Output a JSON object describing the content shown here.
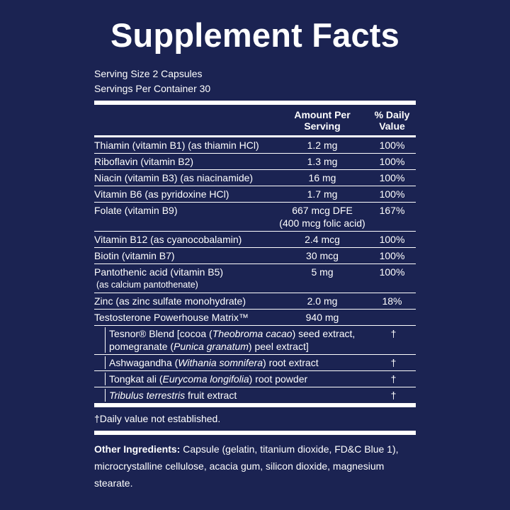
{
  "title": "Supplement Facts",
  "serving_size": "Serving Size 2 Capsules",
  "servings_per_container": "Servings Per Container 30",
  "header": {
    "amount": "Amount Per Serving",
    "daily_value": "% Daily Value"
  },
  "rows": [
    {
      "name": "Thiamin (vitamin B1) (as thiamin HCl)",
      "amount": "1.2 mg",
      "daily_value": "100%"
    },
    {
      "name": "Riboflavin (vitamin B2)",
      "amount": "1.3 mg",
      "daily_value": "100%"
    },
    {
      "name": "Niacin (vitamin B3) (as niacinamide)",
      "amount": "16 mg",
      "daily_value": "100%"
    },
    {
      "name": "Vitamin B6 (as pyridoxine HCl)",
      "amount": "1.7 mg",
      "daily_value": "100%"
    },
    {
      "name": "Folate (vitamin B9)",
      "amount": "667 mcg DFE",
      "amount_note": "(400 mcg folic acid)",
      "daily_value": "167%"
    },
    {
      "name": "Vitamin B12 (as cyanocobalamin)",
      "amount": "2.4 mcg",
      "daily_value": "100%"
    },
    {
      "name": "Biotin (vitamin B7)",
      "amount": "30 mcg",
      "daily_value": "100%"
    },
    {
      "name": "Pantothenic acid (vitamin B5)",
      "name_note": "(as calcium pantothenate)",
      "amount": "5 mg",
      "daily_value": "100%"
    },
    {
      "name": "Zinc (as zinc sulfate monohydrate)",
      "amount": "2.0 mg",
      "daily_value": "18%"
    },
    {
      "name": "Testosterone Powerhouse Matrix™",
      "amount": "940 mg"
    },
    {
      "sub": true,
      "name_parts": [
        {
          "text": "Tesnor® Blend [cocoa ("
        },
        {
          "text": "Theobroma cacao",
          "italic": true
        },
        {
          "text": ") seed extract, pomegranate ("
        },
        {
          "text": "Punica granatum",
          "italic": true
        },
        {
          "text": ") peel extract]"
        }
      ],
      "daily_value": "†"
    },
    {
      "sub": true,
      "name_parts": [
        {
          "text": "Ashwagandha ("
        },
        {
          "text": "Withania somnifera",
          "italic": true
        },
        {
          "text": ") root extract"
        }
      ],
      "daily_value": "†"
    },
    {
      "sub": true,
      "name_parts": [
        {
          "text": "Tongkat ali ("
        },
        {
          "text": "Eurycoma longifolia",
          "italic": true
        },
        {
          "text": ") root powder"
        }
      ],
      "daily_value": "†"
    },
    {
      "sub": true,
      "name_parts": [
        {
          "text": "Tribulus terrestris",
          "italic": true
        },
        {
          "text": " fruit extract"
        }
      ],
      "daily_value": "†"
    }
  ],
  "footnote": "†Daily value not established.",
  "other_ingredients": {
    "label": "Other Ingredients:",
    "text": "Capsule (gelatin, titanium dioxide, FD&C Blue 1), microcrystalline cellulose, acacia gum, silicon dioxide, magnesium stearate."
  }
}
